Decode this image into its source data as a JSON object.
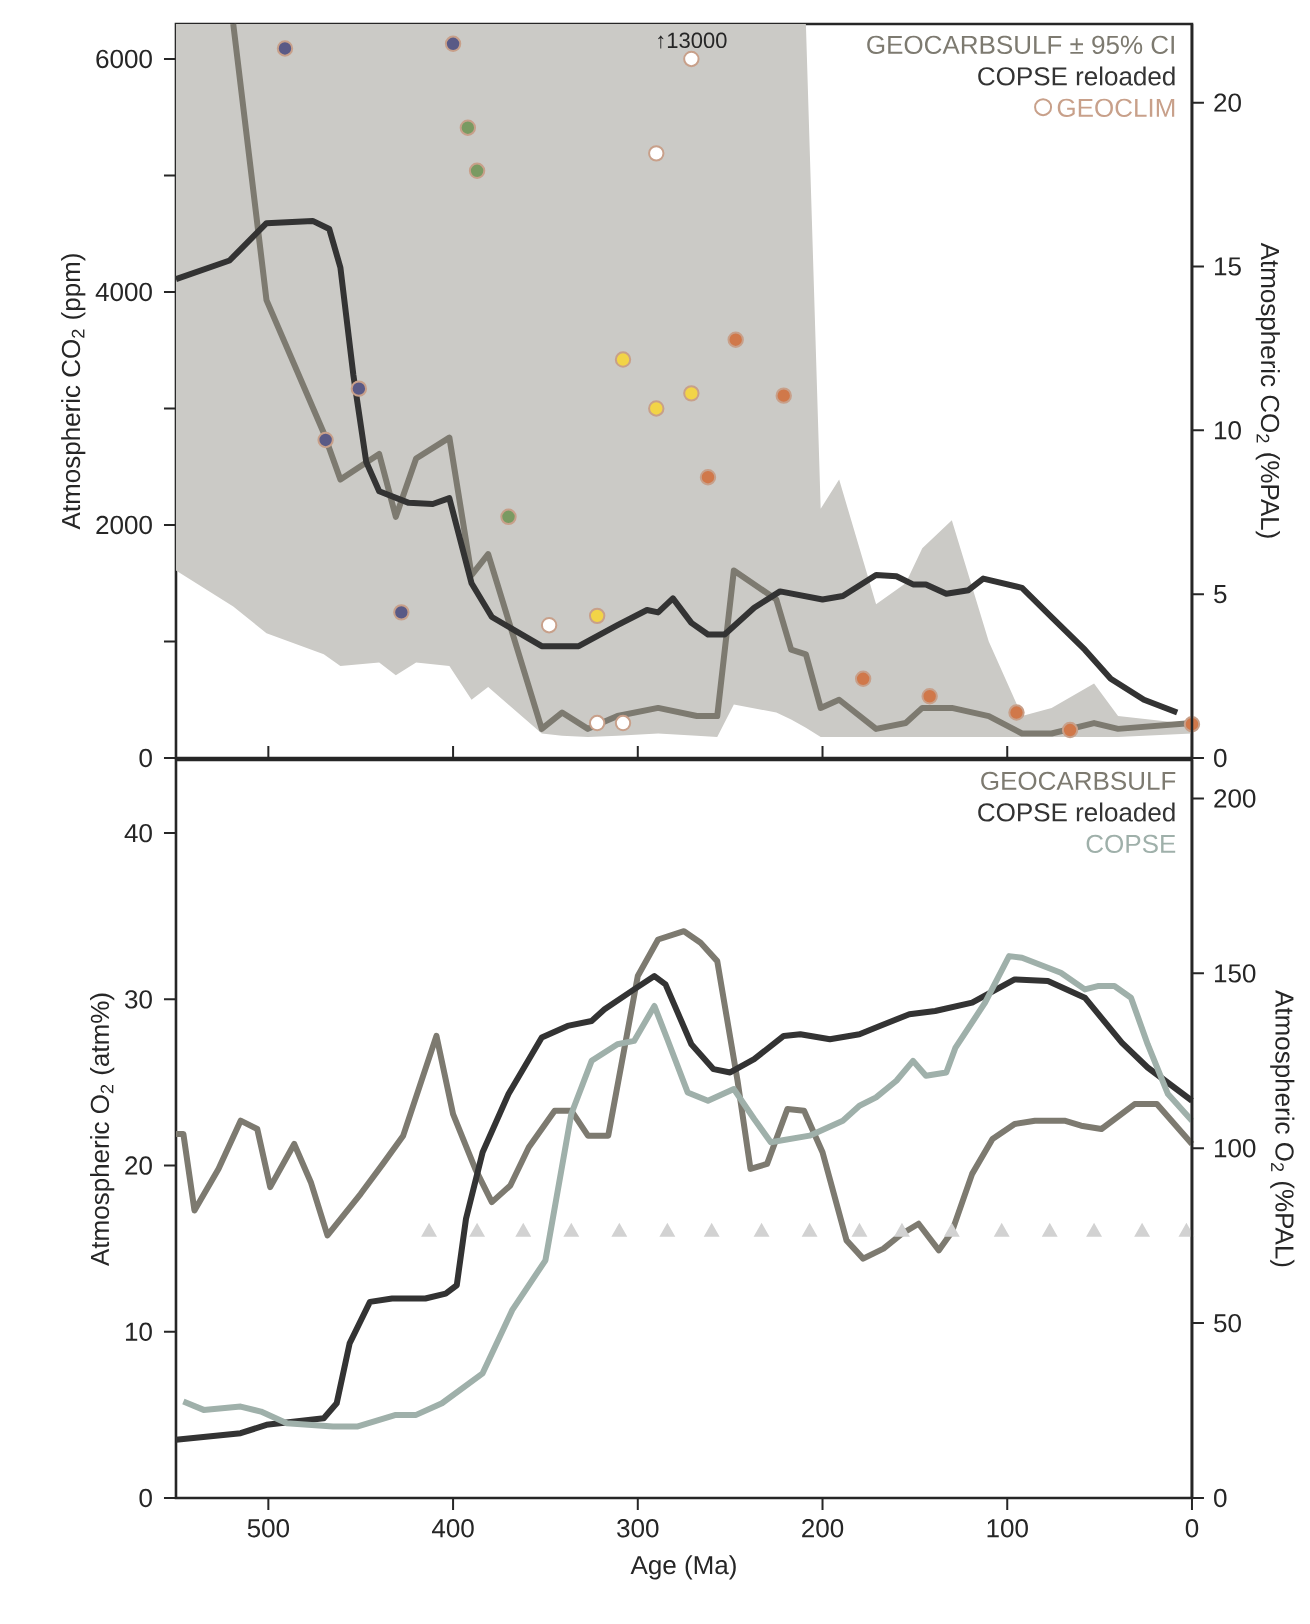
{
  "chart_data": [
    {
      "type": "line",
      "ylabel": "Atmospheric CO$_{2}$ (ppm)",
      "y2label": "Atmospheric CO$_{2}$ (%PAL)",
      "xlim": [
        550,
        0
      ],
      "xticks": [
        {
          "value": 500,
          "label": null
        },
        {
          "value": 400,
          "label": null
        },
        {
          "value": 300,
          "label": null
        },
        {
          "value": 200,
          "label": null
        },
        {
          "value": 100,
          "label": null
        },
        {
          "value": 0,
          "label": null
        }
      ],
      "ylim": [
        0,
        6300
      ],
      "yticks": [
        0,
        {
          "value": 1000,
          "label": null
        },
        2000,
        {
          "value": 3000,
          "label": null
        },
        4000,
        {
          "value": 5000,
          "label": null
        },
        6000
      ],
      "y2lim": [
        0,
        22.4
      ],
      "y2ticks": [
        0,
        5,
        10,
        15,
        20
      ],
      "tick_labels": "y",
      "legend": "top right",
      "annotations": [
        {
          "text": "↑13000",
          "x": 271,
          "y": 6000
        }
      ],
      "series": [
        {
          "name": "GEOCARBSULF ± 95% CI",
          "color": "#7d7a70",
          "x": [
            550,
            519,
            501,
            470,
            461,
            440,
            431,
            420,
            402,
            390,
            381,
            352,
            341,
            327,
            311,
            289,
            268,
            257,
            248,
            225,
            217,
            209,
            201,
            191,
            171,
            155,
            146,
            130,
            110,
            92,
            76,
            53,
            40,
            0
          ],
          "values": [
            null,
            6300,
            3930,
            2790,
            2390,
            2610,
            2070,
            2570,
            2750,
            1570,
            1750,
            250,
            390,
            250,
            360,
            430,
            360,
            360,
            1610,
            1360,
            930,
            890,
            430,
            500,
            250,
            300,
            430,
            430,
            360,
            210,
            210,
            300,
            250,
            300
          ],
          "lower": [
            1610,
            1300,
            1070,
            890,
            790,
            820,
            710,
            820,
            790,
            500,
            610,
            210,
            190,
            180,
            190,
            210,
            190,
            180,
            460,
            390,
            330,
            260,
            180,
            180,
            180,
            180,
            180,
            180,
            180,
            180,
            180,
            180,
            180,
            210
          ],
          "upper": [
            6300,
            6300,
            6300,
            6300,
            6300,
            6300,
            6300,
            6300,
            6300,
            6300,
            6300,
            6300,
            6300,
            6300,
            6300,
            6300,
            6300,
            6300,
            6300,
            6300,
            6300,
            6300,
            2140,
            2390,
            1320,
            1500,
            1800,
            2040,
            1000,
            360,
            430,
            640,
            360,
            290
          ]
        },
        {
          "name": "COPSE reloaded",
          "color": "#333333",
          "x": [
            550,
            521,
            501,
            476,
            467,
            461,
            454,
            447,
            440,
            424,
            411,
            402,
            390,
            379,
            352,
            332,
            311,
            295,
            289,
            281,
            271,
            262,
            253,
            237,
            223,
            200,
            189,
            171,
            160,
            151,
            144,
            133,
            121,
            113,
            92,
            76,
            58,
            44,
            26,
            8
          ],
          "values": [
            4110,
            4270,
            4590,
            4610,
            4540,
            4210,
            3290,
            2540,
            2290,
            2190,
            2180,
            2230,
            1500,
            1210,
            960,
            960,
            1140,
            1270,
            1250,
            1370,
            1160,
            1060,
            1060,
            1290,
            1430,
            1360,
            1390,
            1570,
            1560,
            1490,
            1490,
            1410,
            1440,
            1540,
            1460,
            1210,
            930,
            680,
            500,
            390
          ]
        },
        {
          "name": "GEOCLIM",
          "type": "scatter",
          "marker": "circle",
          "color": "#c8a08a",
          "x": [
            491,
            400,
            451,
            469,
            428,
            392,
            387,
            370,
            271,
            290,
            348,
            322,
            308,
            308,
            322,
            290,
            271,
            247,
            221,
            262,
            178,
            142,
            95,
            66,
            0
          ],
          "values": [
            6090,
            6130,
            3170,
            2730,
            1250,
            5410,
            5040,
            2070,
            6000,
            5190,
            1140,
            300,
            300,
            3420,
            1220,
            3000,
            3130,
            3590,
            3110,
            2410,
            680,
            530,
            390,
            240,
            290
          ],
          "colors": [
            "#5a5a86",
            "#5a5a86",
            "#5a5a86",
            "#5a5a86",
            "#5a5a86",
            "#7a9a62",
            "#7a9a62",
            "#7a9a62",
            "#ffffff",
            "#ffffff",
            "#ffffff",
            "#ffffff",
            "#ffffff",
            "#f2d447",
            "#f2d447",
            "#f2d447",
            "#f2d447",
            "#d0784a",
            "#d0784a",
            "#d0784a",
            "#d0784a",
            "#d0784a",
            "#d0784a",
            "#d0784a",
            "#d0784a"
          ]
        }
      ]
    },
    {
      "type": "line",
      "xlabel": "Age (Ma)",
      "ylabel": "Atmospheric O$_{2}$ (atm%)",
      "y2label": "Atmospheric O$_{2}$ (%PAL)",
      "xlim": [
        550,
        0
      ],
      "xticks": [
        500,
        400,
        300,
        200,
        100,
        0
      ],
      "ylim": [
        0,
        44.4
      ],
      "yticks": [
        0,
        10,
        20,
        30,
        40
      ],
      "y2lim": [
        0,
        211
      ],
      "y2ticks": [
        0,
        50,
        100,
        150,
        200
      ],
      "legend": "top right",
      "series": [
        {
          "name": "GEOCARBSULF",
          "color": "#7d7a70",
          "x": [
            550,
            546,
            540,
            527,
            515,
            506,
            499,
            486,
            477,
            468,
            450,
            438,
            427,
            409,
            400,
            388,
            379,
            369,
            359,
            345,
            336,
            327,
            316,
            300,
            289,
            275,
            266,
            257,
            246,
            239,
            230,
            219,
            210,
            200,
            187,
            178,
            167,
            157,
            148,
            137,
            130,
            119,
            108,
            96,
            85,
            69,
            60,
            49,
            31,
            19,
            0
          ],
          "values": [
            21.9,
            21.9,
            17.3,
            19.8,
            22.7,
            22.2,
            18.7,
            21.3,
            19.0,
            15.8,
            18.3,
            20.1,
            21.8,
            27.8,
            23.1,
            19.8,
            17.8,
            18.8,
            21.1,
            23.3,
            23.3,
            21.8,
            21.8,
            31.4,
            33.6,
            34.1,
            33.4,
            32.3,
            25.1,
            19.8,
            20.1,
            23.4,
            23.3,
            20.8,
            15.5,
            14.4,
            15.0,
            15.9,
            16.5,
            14.9,
            16.0,
            19.5,
            21.6,
            22.5,
            22.7,
            22.7,
            22.4,
            22.2,
            23.7,
            23.7,
            21.3
          ]
        },
        {
          "name": "COPSE reloaded",
          "color": "#333333",
          "x": [
            550,
            515,
            501,
            470,
            463,
            456,
            445,
            433,
            415,
            404,
            398,
            393,
            384,
            370,
            352,
            338,
            325,
            318,
            302,
            291,
            285,
            271,
            259,
            250,
            237,
            221,
            212,
            196,
            180,
            169,
            153,
            139,
            119,
            96,
            78,
            58,
            38,
            24,
            0
          ],
          "values": [
            3.5,
            3.9,
            4.4,
            4.8,
            5.7,
            9.3,
            11.8,
            12.0,
            12.0,
            12.3,
            12.8,
            16.8,
            20.8,
            24.3,
            27.7,
            28.4,
            28.7,
            29.4,
            30.6,
            31.4,
            30.9,
            27.3,
            25.8,
            25.6,
            26.4,
            27.8,
            27.9,
            27.6,
            27.9,
            28.4,
            29.1,
            29.3,
            29.8,
            31.2,
            31.1,
            30.1,
            27.4,
            25.9,
            23.9
          ]
        },
        {
          "name": "COPSE",
          "color": "#9fb0aa",
          "x": [
            546,
            535,
            515,
            504,
            490,
            465,
            452,
            431,
            420,
            406,
            384,
            368,
            350,
            336,
            325,
            311,
            302,
            291,
            284,
            273,
            262,
            248,
            237,
            228,
            207,
            189,
            180,
            171,
            160,
            151,
            144,
            133,
            128,
            112,
            99,
            92,
            71,
            58,
            51,
            42,
            33,
            24,
            13,
            0
          ],
          "values": [
            5.8,
            5.3,
            5.5,
            5.2,
            4.5,
            4.3,
            4.3,
            5.0,
            5.0,
            5.7,
            7.5,
            11.3,
            14.3,
            23.1,
            26.3,
            27.3,
            27.5,
            29.6,
            27.6,
            24.4,
            23.9,
            24.6,
            22.8,
            21.4,
            21.8,
            22.7,
            23.6,
            24.1,
            25.1,
            26.3,
            25.4,
            25.6,
            27.1,
            29.8,
            32.6,
            32.5,
            31.6,
            30.6,
            30.8,
            30.8,
            30.1,
            27.3,
            24.3,
            22.7
          ]
        },
        {
          "type": "scatter",
          "marker": "triangle",
          "color": "#d2d2d2",
          "x": [
            413,
            387,
            362,
            336,
            310,
            284,
            260,
            233,
            207,
            180,
            157,
            130,
            103,
            77,
            53,
            27,
            3
          ],
          "values": [
            16,
            16,
            16,
            16,
            16,
            16,
            16,
            16,
            16,
            16,
            16,
            16,
            16,
            16,
            16,
            16,
            16
          ]
        }
      ]
    }
  ]
}
